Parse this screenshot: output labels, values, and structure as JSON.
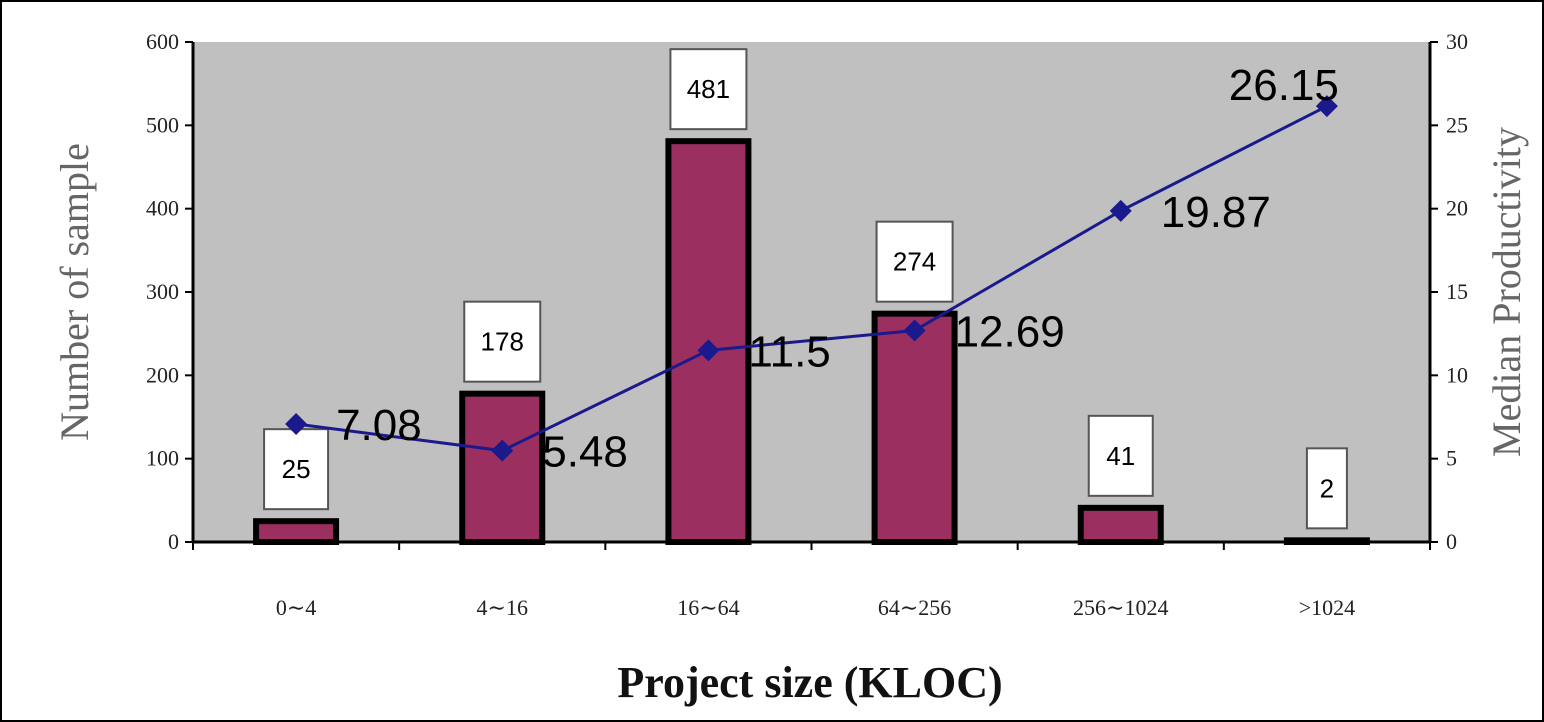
{
  "chart_data": {
    "type": "bar",
    "xlabel": "Project size (KLOC)",
    "ylabel": "Number  of sample",
    "y2label": "Median Productivity",
    "categories": [
      "0∼4",
      "4∼16",
      "16∼64",
      "64∼256",
      "256∼1024",
      ">1024"
    ],
    "ylim": [
      0,
      600
    ],
    "y2lim": [
      0,
      30
    ],
    "yticks": [
      "0",
      "100",
      "200",
      "300",
      "400",
      "500",
      "600"
    ],
    "y2ticks": [
      "0",
      "5",
      "10",
      "15",
      "20",
      "25",
      "30"
    ],
    "grid": false,
    "series": [
      {
        "type": "bar",
        "values": [
          25,
          178,
          481,
          274,
          41,
          2
        ],
        "labels": [
          "25",
          "178",
          "481",
          "274",
          "41",
          "2"
        ],
        "color": "#9b3060"
      },
      {
        "type": "line",
        "axis": "right",
        "values": [
          7.08,
          5.48,
          11.5,
          12.69,
          19.87,
          26.15
        ],
        "labels": [
          "7.08",
          "5.48",
          "11.5",
          "12.69",
          "19.87",
          "26.15"
        ],
        "color": "#1a1a8c"
      }
    ],
    "plot_background": "#c0c0c0",
    "bar_border_color": "#000000"
  }
}
